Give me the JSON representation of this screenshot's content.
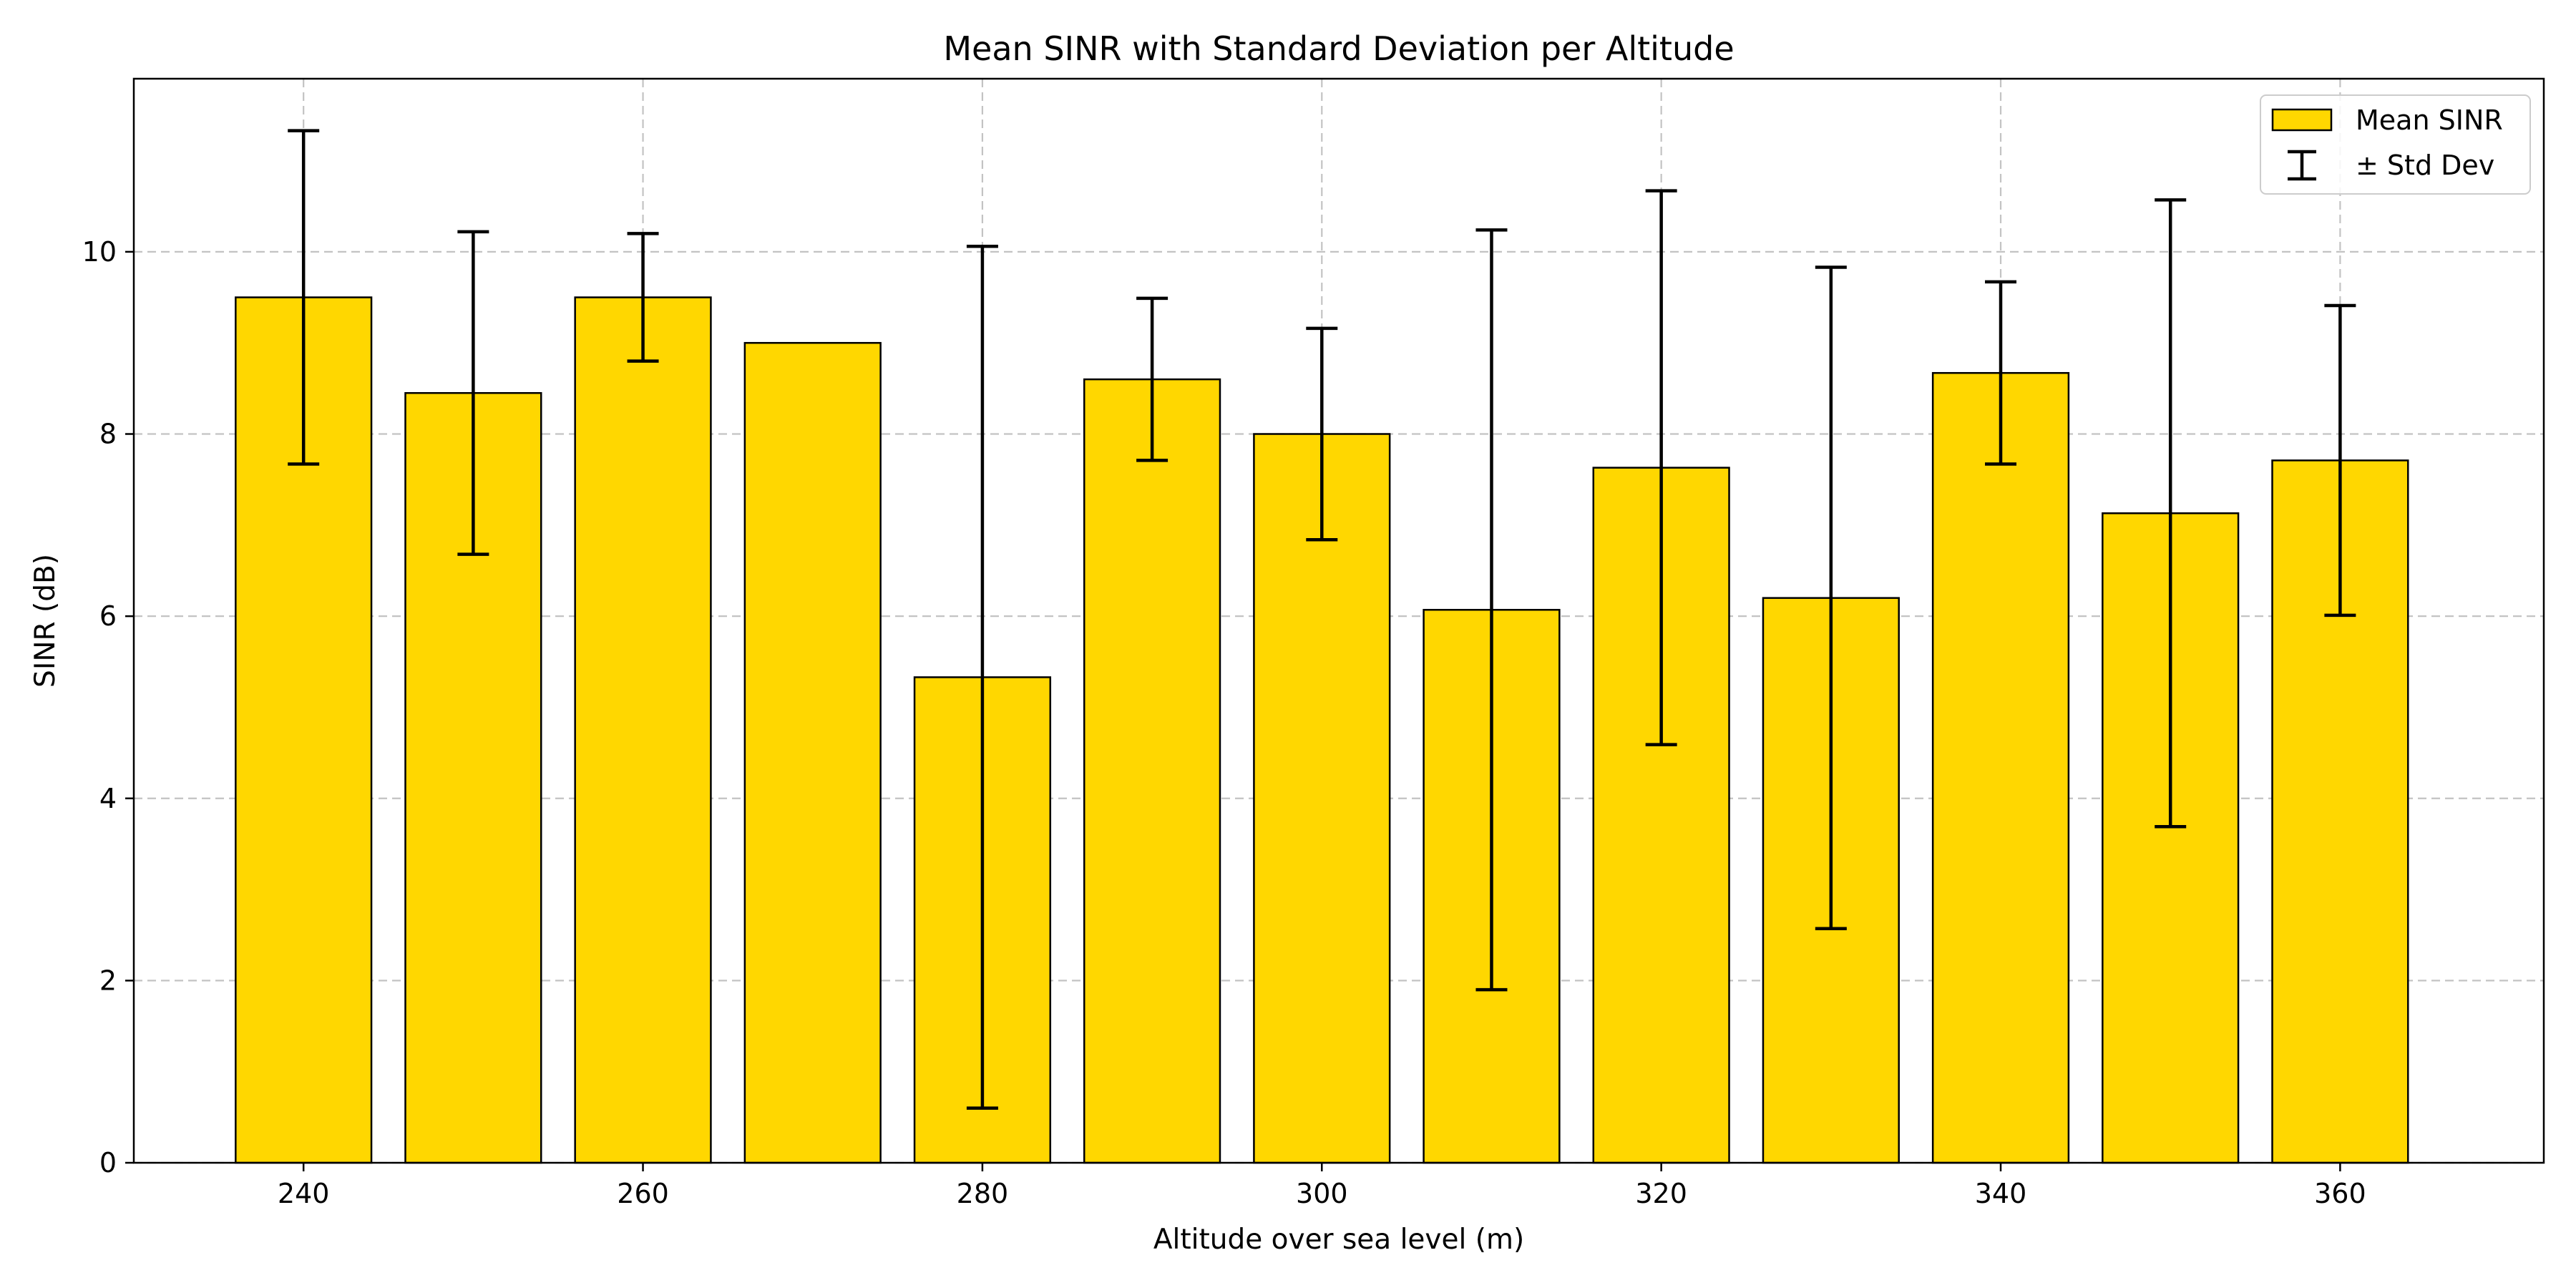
{
  "chart_data": {
    "type": "bar",
    "title": "Mean SINR with Standard Deviation per Altitude",
    "xlabel": "Altitude over sea level (m)",
    "ylabel": "SINR (dB)",
    "x": [
      240,
      250,
      260,
      270,
      280,
      290,
      300,
      310,
      320,
      330,
      340,
      350,
      360
    ],
    "series": [
      {
        "name": "Mean SINR",
        "values": [
          9.5,
          8.45,
          9.5,
          9.0,
          5.33,
          8.6,
          8.0,
          6.07,
          7.63,
          6.2,
          8.67,
          7.13,
          7.71
        ],
        "std": [
          1.83,
          1.77,
          0.7,
          0.0,
          4.73,
          0.89,
          1.16,
          4.17,
          3.04,
          3.63,
          1.0,
          3.44,
          1.7
        ],
        "color": "#FFD700",
        "edgecolor": "#000000"
      }
    ],
    "error_label": "± Std Dev",
    "xlim": [
      230,
      372
    ],
    "ylim": [
      0,
      11.9
    ],
    "xticks": [
      240,
      260,
      280,
      300,
      320,
      340,
      360
    ],
    "yticks": [
      0,
      2,
      4,
      6,
      8,
      10
    ],
    "grid": true,
    "legend_position": "top-right"
  }
}
